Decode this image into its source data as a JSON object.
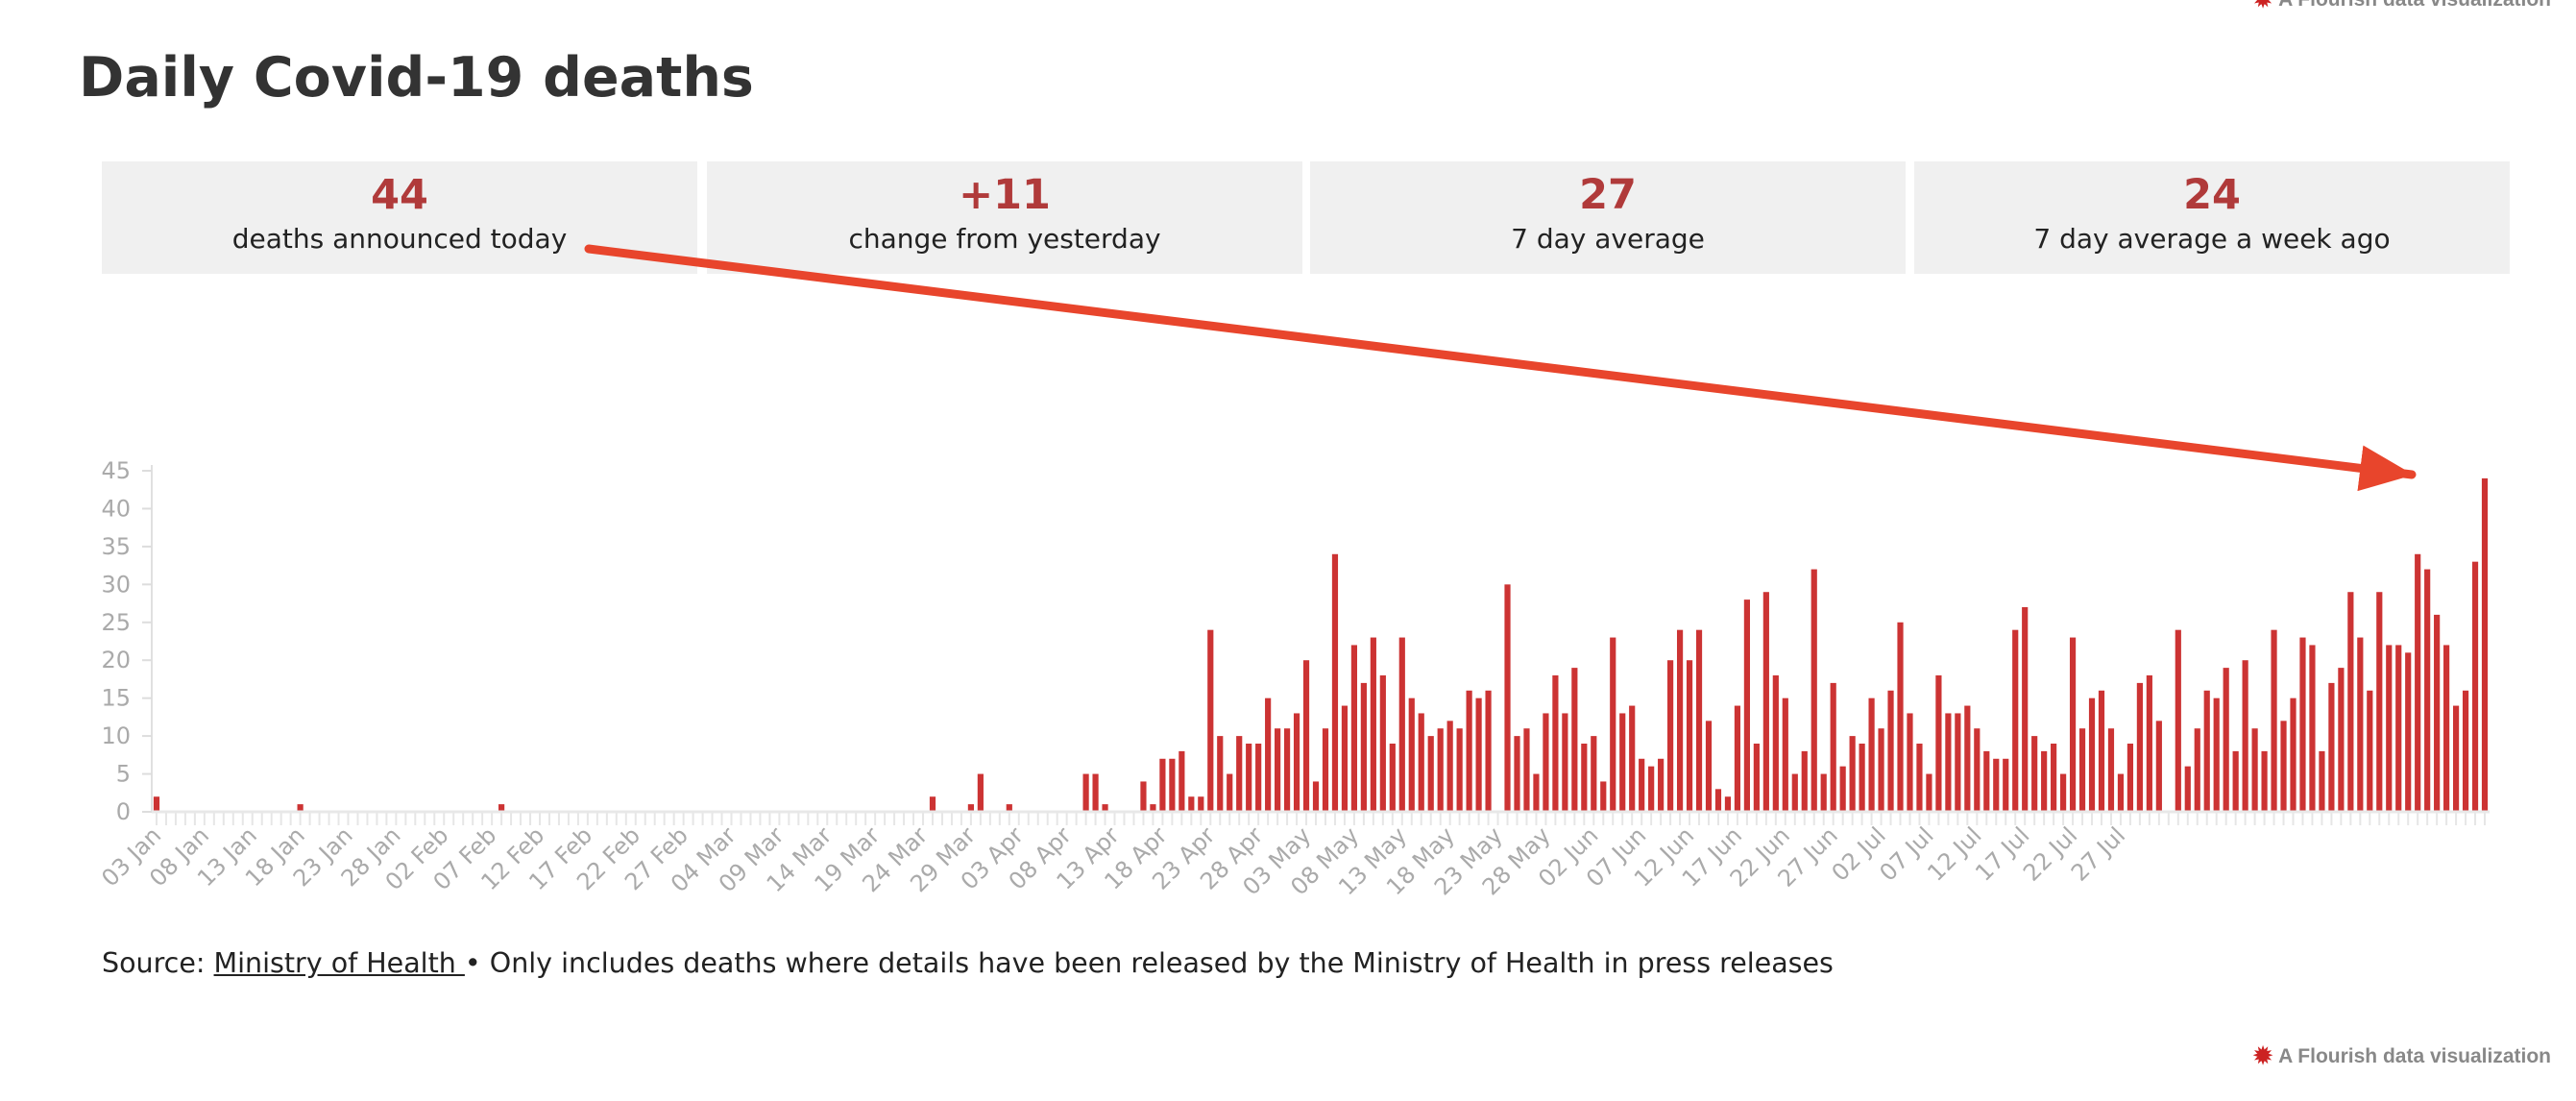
{
  "credit": "A Flourish data visualization",
  "title": "Daily Covid-19 deaths",
  "stats": [
    {
      "value": "44",
      "label": "deaths announced today"
    },
    {
      "value": "+11",
      "label": "change from yesterday"
    },
    {
      "value": "27",
      "label": "7 day average"
    },
    {
      "value": "24",
      "label": "7 day average a week ago"
    }
  ],
  "footer": {
    "prefix": "Source: ",
    "link": "Ministry of Health ",
    "text": "• Only includes deaths where details have been released by the Ministry of Health in press releases"
  },
  "colors": {
    "bar": "#cc3333",
    "arrow": "#e8452c",
    "stat_value": "#b03a3a"
  },
  "chart_data": {
    "type": "bar",
    "start_date": "2020-01-03",
    "x_tick_labels": [
      "03 Jan",
      "08 Jan",
      "13 Jan",
      "18 Jan",
      "23 Jan",
      "28 Jan",
      "02 Feb",
      "07 Feb",
      "12 Feb",
      "17 Feb",
      "22 Feb",
      "27 Feb",
      "04 Mar",
      "09 Mar",
      "14 Mar",
      "19 Mar",
      "24 Mar",
      "29 Mar",
      "03 Apr",
      "08 Apr",
      "13 Apr",
      "18 Apr",
      "23 Apr",
      "28 Apr",
      "03 May",
      "08 May",
      "13 May",
      "18 May",
      "23 May",
      "28 May",
      "02 Jun",
      "07 Jun",
      "12 Jun",
      "17 Jun",
      "22 Jun",
      "27 Jun",
      "02 Jul",
      "07 Jul",
      "12 Jul",
      "17 Jul",
      "22 Jul",
      "27 Jul"
    ],
    "y_ticks": [
      0,
      5,
      10,
      15,
      20,
      25,
      30,
      35,
      40,
      45
    ],
    "ylim": [
      0,
      45
    ],
    "values": [
      2,
      0,
      0,
      0,
      0,
      0,
      0,
      0,
      0,
      0,
      0,
      0,
      0,
      0,
      0,
      1,
      0,
      0,
      0,
      0,
      0,
      0,
      0,
      0,
      0,
      0,
      0,
      0,
      0,
      0,
      0,
      0,
      0,
      0,
      0,
      0,
      1,
      0,
      0,
      0,
      0,
      0,
      0,
      0,
      0,
      0,
      0,
      0,
      0,
      0,
      0,
      0,
      0,
      0,
      0,
      0,
      0,
      0,
      0,
      0,
      0,
      0,
      0,
      0,
      0,
      0,
      0,
      0,
      0,
      0,
      0,
      0,
      0,
      0,
      0,
      0,
      0,
      0,
      0,
      0,
      0,
      2,
      0,
      0,
      0,
      1,
      5,
      0,
      0,
      1,
      0,
      0,
      0,
      0,
      0,
      0,
      0,
      5,
      5,
      1,
      0,
      0,
      0,
      4,
      1,
      7,
      7,
      8,
      2,
      2,
      24,
      10,
      5,
      10,
      9,
      9,
      15,
      11,
      11,
      13,
      20,
      4,
      11,
      34,
      14,
      22,
      17,
      23,
      18,
      9,
      23,
      15,
      13,
      10,
      11,
      12,
      11,
      16,
      15,
      16,
      0,
      30,
      10,
      11,
      5,
      13,
      18,
      13,
      19,
      9,
      10,
      4,
      23,
      13,
      14,
      7,
      6,
      7,
      20,
      24,
      20,
      24,
      12,
      3,
      2,
      14,
      28,
      9,
      29,
      18,
      15,
      5,
      8,
      32,
      5,
      17,
      6,
      10,
      9,
      15,
      11,
      16,
      25,
      13,
      9,
      5,
      18,
      13,
      13,
      14,
      11,
      8,
      7,
      7,
      24,
      27,
      10,
      8,
      9,
      5,
      23,
      11,
      15,
      16,
      11,
      5,
      9,
      17,
      18,
      12,
      0,
      24,
      6,
      11,
      16,
      15,
      19,
      8,
      20,
      11,
      8,
      24,
      12,
      15,
      23,
      22,
      8,
      17,
      19,
      29,
      23,
      16,
      29,
      22,
      22,
      21,
      34,
      32,
      26,
      22,
      14,
      16,
      33,
      44
    ]
  }
}
